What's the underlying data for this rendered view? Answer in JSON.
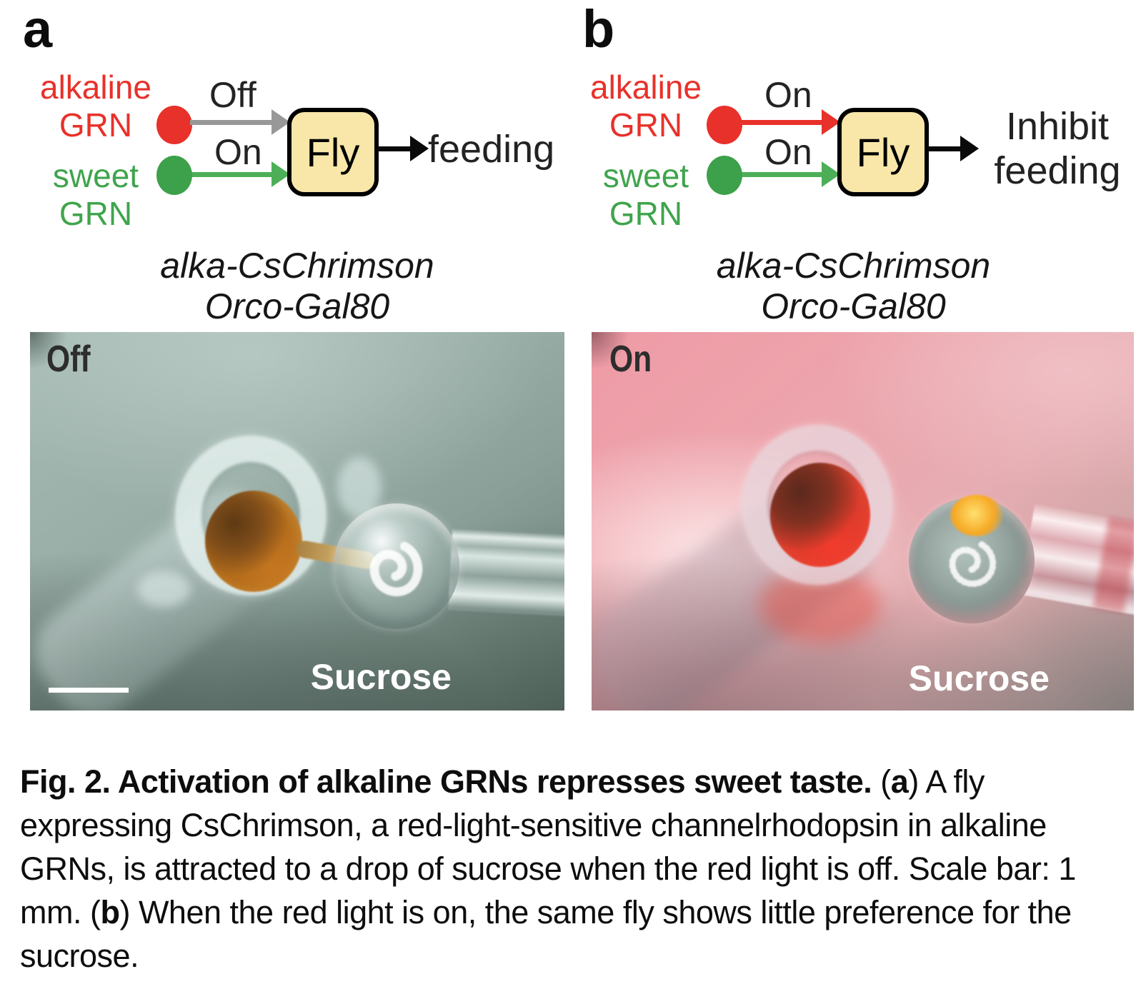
{
  "figure": {
    "panel_a": {
      "panel_label": "a",
      "input1": {
        "name_line1": "alkaline",
        "name_line2": "GRN"
      },
      "input2": {
        "name_line1": "sweet",
        "name_line2": "GRN"
      },
      "arrow1_label": "Off",
      "arrow2_label": "On",
      "box_label": "Fly",
      "outcome": "feeding",
      "genotype_line1": "alka-CsChrimson",
      "genotype_line2": "Orco-Gal80",
      "photo": {
        "light_state": "Off",
        "drop_label": "Sucrose"
      }
    },
    "panel_b": {
      "panel_label": "b",
      "input1": {
        "name_line1": "alkaline",
        "name_line2": "GRN"
      },
      "input2": {
        "name_line1": "sweet",
        "name_line2": "GRN"
      },
      "arrow1_label": "On",
      "arrow2_label": "On",
      "box_label": "Fly",
      "outcome_line1": "Inhibit",
      "outcome_line2": "feeding",
      "genotype_line1": "alka-CsChrimson",
      "genotype_line2": "Orco-Gal80",
      "photo": {
        "light_state": "On",
        "drop_label": "Sucrose"
      }
    },
    "caption": {
      "segments": [
        {
          "text": "Fig. 2. Activation of alkaline GRNs represses sweet taste.",
          "bold": true
        },
        {
          "text": " (",
          "bold": false
        },
        {
          "text": "a",
          "bold": true
        },
        {
          "text": ") A fly expressing CsChrimson, a red-light-sensitive channelrhodopsin in alkaline GRNs, is attracted to a drop of sucrose when the red light is off. Scale bar: 1 mm. (",
          "bold": false
        },
        {
          "text": "b",
          "bold": true
        },
        {
          "text": ") When the red light is on, the same fly shows little preference for the sucrose.",
          "bold": false
        }
      ]
    },
    "colors": {
      "alkaline_red": "#e8312a",
      "sweet_green": "#3fa44c",
      "off_arrow_gray": "#989898",
      "on_arrow_green": "#4caf57",
      "fly_box_fill": "#f8e7a9",
      "photo_a_background_teal": "#90a59e",
      "photo_b_background_pink": "#eda4ac"
    }
  }
}
